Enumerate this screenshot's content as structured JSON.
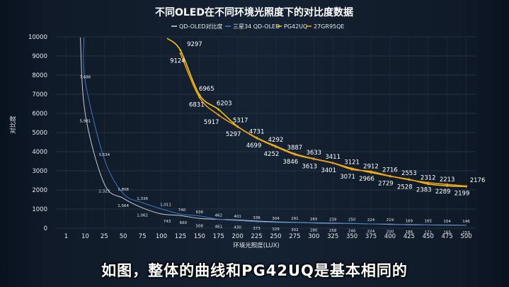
{
  "subtitle": "如图，整体的曲线和PG42UQ是基本相同的",
  "chart_data": {
    "type": "line",
    "title": "不同OLED在不同环境光照度下的对比度数据",
    "xlabel": "环境光照度(LUX)",
    "ylabel": "对比度",
    "categories": [
      "1",
      "10",
      "25",
      "50",
      "75",
      "100",
      "125",
      "150",
      "175",
      "200",
      "225",
      "250",
      "275",
      "300",
      "325",
      "350",
      "375",
      "400",
      "425",
      "450",
      "475",
      "500"
    ],
    "ylim": [
      0,
      10000
    ],
    "yticks": [
      0,
      1000,
      2000,
      3000,
      4000,
      5000,
      6000,
      7000,
      8000,
      9000,
      10000
    ],
    "grid": true,
    "legend_position": "top-center",
    "series": [
      {
        "name": "QD-OLED对比度",
        "color": "#c9cbd4",
        "values": [
          null,
          5981,
          2323,
          1564,
          1062,
          743,
          660,
          508,
          461,
          430,
          373,
          329,
          302,
          280,
          258,
          246,
          224,
          200,
          186,
          171,
          165,
          153
        ],
        "labels": [
          "",
          "5,981",
          "2,323",
          "1,564",
          "1,062",
          "743",
          "660",
          "508",
          "461",
          "430",
          "373",
          "329",
          "302",
          "280",
          "258",
          "246",
          "224",
          "200",
          "186",
          "171",
          "165",
          "153"
        ]
      },
      {
        "name": "三星34 QD-OLED",
        "color": "#3d78c2",
        "values": [
          null,
          7686,
          3634,
          1808,
          1336,
          1011,
          740,
          638,
          462,
          401,
          336,
          304,
          291,
          265,
          239,
          250,
          224,
          219,
          169,
          165,
          154,
          146
        ],
        "labels": [
          "",
          "7,686",
          "3,634",
          "1,808",
          "1,336",
          "1,011",
          "740",
          "638",
          "462",
          "401",
          "336",
          "304",
          "291",
          "265",
          "239",
          "250",
          "224",
          "219",
          "169",
          "165",
          "154",
          "146"
        ]
      },
      {
        "name": "PG42UQ",
        "color": "#f0c419",
        "values": [
          null,
          null,
          null,
          null,
          null,
          null,
          9297,
          6965,
          6203,
          5317,
          4731,
          4292,
          3887,
          3633,
          3411,
          3121,
          2912,
          2716,
          2553,
          2312,
          2213,
          2176
        ],
        "labels": [
          "",
          "",
          "",
          "",
          "",
          "",
          "9297",
          "6965",
          "6203",
          "5317",
          "4731",
          "4292",
          "3887",
          "3633",
          "3411",
          "3121",
          "2912",
          "2716",
          "2553",
          "2312",
          "2213",
          "2176"
        ]
      },
      {
        "name": "27GR95QE",
        "color": "#ee9b1c",
        "values": [
          null,
          null,
          null,
          null,
          null,
          null,
          9124,
          6831,
          5917,
          5297,
          4699,
          4252,
          3846,
          3613,
          3401,
          3071,
          2966,
          2729,
          2528,
          2383,
          2289,
          2199
        ],
        "labels": [
          "",
          "",
          "",
          "",
          "",
          "",
          "9124",
          "6831",
          "5917",
          "5297",
          "4699",
          "4252",
          "3846",
          "3613",
          "3401",
          "3071",
          "2966",
          "2729",
          "2528",
          "2383",
          "2289",
          "2199"
        ]
      }
    ]
  }
}
